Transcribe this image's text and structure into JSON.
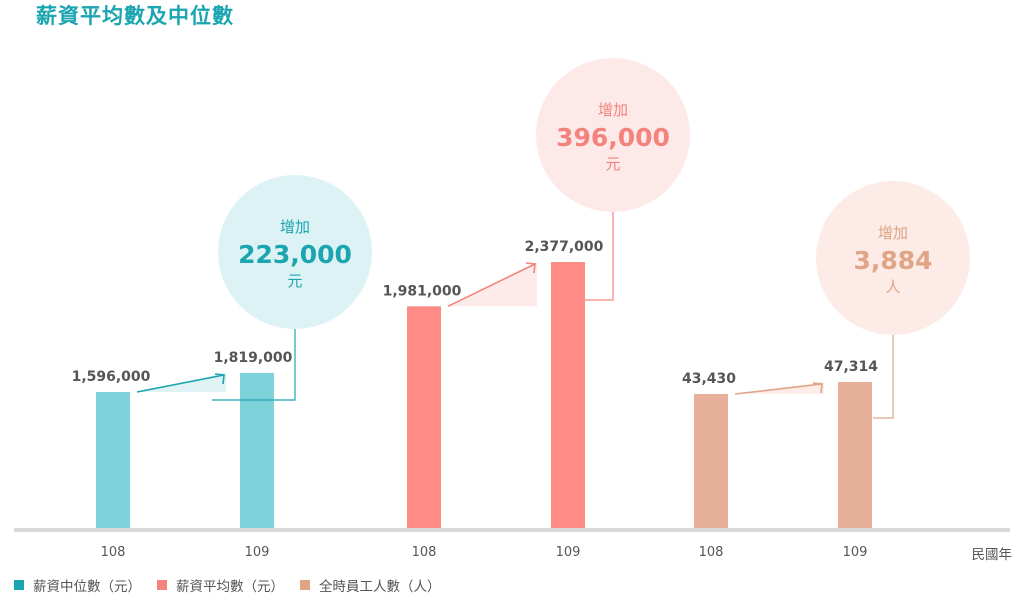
{
  "page": {
    "title": "薪資平均數及中位數",
    "title_color": "#1AA5B0",
    "x_unit_label": "民國年"
  },
  "legend": [
    {
      "label": "薪資中位數（元）",
      "color": "#1AA5B0"
    },
    {
      "label": "薪資平均數（元）",
      "color": "#F4837D"
    },
    {
      "label": "全時員工人數（人）",
      "color": "#E0A486"
    }
  ],
  "chart_data": {
    "type": "bar",
    "groups": [
      {
        "name": "薪資中位數（元）",
        "categories": [
          "108",
          "109"
        ],
        "values": [
          1596000,
          1819000
        ],
        "value_labels": [
          "1,596,000",
          "1,819,000"
        ],
        "color": "#7ED3DB",
        "accent": "#1AA5B0",
        "callout": {
          "line1": "增加",
          "value": "223,000",
          "unit": "元",
          "bubble_color": "#DDF2F4"
        }
      },
      {
        "name": "薪資平均數（元）",
        "categories": [
          "108",
          "109"
        ],
        "values": [
          1981000,
          2377000
        ],
        "value_labels": [
          "1,981,000",
          "2,377,000"
        ],
        "color": "#FF8B86",
        "accent": "#F4837D",
        "callout": {
          "line1": "增加",
          "value": "396,000",
          "unit": "元",
          "bubble_color": "#FDE9E8"
        }
      },
      {
        "name": "全時員工人數（人）",
        "categories": [
          "108",
          "109"
        ],
        "values": [
          43430,
          47314
        ],
        "value_labels": [
          "43,430",
          "47,314"
        ],
        "color": "#E6B09A",
        "accent": "#E0A486",
        "callout": {
          "line1": "增加",
          "value": "3,884",
          "unit": "人",
          "bubble_color": "#FCEBE6"
        }
      }
    ],
    "xlabel": "民國年",
    "grid": false
  }
}
